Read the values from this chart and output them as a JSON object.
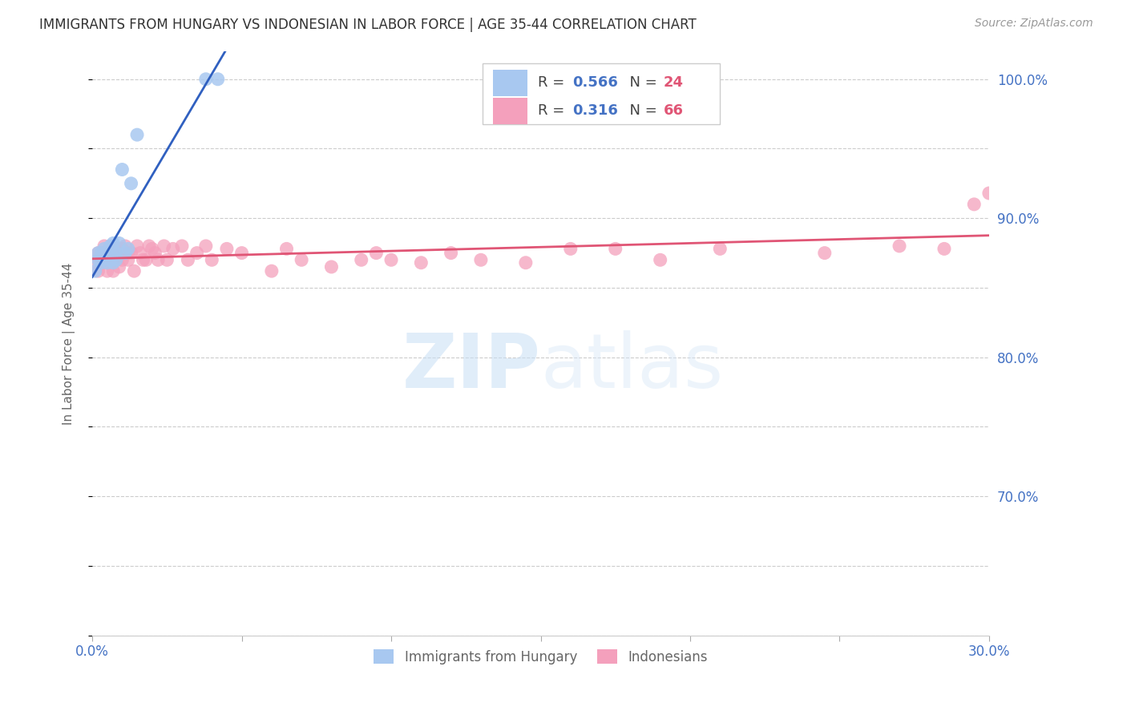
{
  "title": "IMMIGRANTS FROM HUNGARY VS INDONESIAN IN LABOR FORCE | AGE 35-44 CORRELATION CHART",
  "source": "Source: ZipAtlas.com",
  "ylabel": "In Labor Force | Age 35-44",
  "x_min": 0.0,
  "x_max": 0.3,
  "y_min": 0.6,
  "y_max": 1.02,
  "x_ticks": [
    0.0,
    0.05,
    0.1,
    0.15,
    0.2,
    0.25,
    0.3
  ],
  "y_ticks": [
    0.6,
    0.65,
    0.7,
    0.75,
    0.8,
    0.85,
    0.9,
    0.95,
    1.0
  ],
  "y_tick_labels_right": [
    "",
    "",
    "70.0%",
    "",
    "80.0%",
    "",
    "90.0%",
    "",
    "100.0%"
  ],
  "hungary_color": "#a8c8f0",
  "indonesian_color": "#f4a0bc",
  "hungary_line_color": "#3060c0",
  "indonesian_line_color": "#e05575",
  "hungary_x": [
    0.001,
    0.002,
    0.002,
    0.003,
    0.003,
    0.004,
    0.004,
    0.005,
    0.005,
    0.006,
    0.006,
    0.007,
    0.007,
    0.007,
    0.008,
    0.008,
    0.009,
    0.01,
    0.011,
    0.012,
    0.013,
    0.015,
    0.038,
    0.042
  ],
  "hungary_y": [
    0.862,
    0.87,
    0.875,
    0.868,
    0.875,
    0.872,
    0.878,
    0.868,
    0.875,
    0.87,
    0.88,
    0.868,
    0.875,
    0.882,
    0.87,
    0.875,
    0.882,
    0.935,
    0.875,
    0.878,
    0.925,
    0.96,
    1.0,
    1.0
  ],
  "indonesian_x": [
    0.001,
    0.002,
    0.002,
    0.003,
    0.003,
    0.004,
    0.004,
    0.004,
    0.005,
    0.005,
    0.005,
    0.006,
    0.006,
    0.007,
    0.007,
    0.007,
    0.008,
    0.008,
    0.009,
    0.009,
    0.01,
    0.01,
    0.011,
    0.011,
    0.012,
    0.012,
    0.013,
    0.014,
    0.015,
    0.016,
    0.017,
    0.018,
    0.019,
    0.02,
    0.021,
    0.022,
    0.024,
    0.025,
    0.027,
    0.03,
    0.032,
    0.035,
    0.038,
    0.04,
    0.045,
    0.05,
    0.06,
    0.065,
    0.07,
    0.08,
    0.09,
    0.095,
    0.1,
    0.11,
    0.12,
    0.13,
    0.145,
    0.16,
    0.175,
    0.19,
    0.21,
    0.245,
    0.27,
    0.285,
    0.295,
    0.3
  ],
  "indonesian_y": [
    0.868,
    0.875,
    0.862,
    0.875,
    0.868,
    0.875,
    0.87,
    0.88,
    0.868,
    0.875,
    0.862,
    0.875,
    0.87,
    0.875,
    0.87,
    0.862,
    0.878,
    0.87,
    0.875,
    0.865,
    0.878,
    0.87,
    0.875,
    0.88,
    0.87,
    0.875,
    0.875,
    0.862,
    0.88,
    0.875,
    0.87,
    0.87,
    0.88,
    0.878,
    0.875,
    0.87,
    0.88,
    0.87,
    0.878,
    0.88,
    0.87,
    0.875,
    0.88,
    0.87,
    0.878,
    0.875,
    0.862,
    0.878,
    0.87,
    0.865,
    0.87,
    0.875,
    0.87,
    0.868,
    0.875,
    0.87,
    0.868,
    0.878,
    0.878,
    0.87,
    0.878,
    0.875,
    0.88,
    0.878,
    0.91,
    0.918
  ],
  "watermark_zip": "ZIP",
  "watermark_atlas": "atlas",
  "background_color": "#ffffff",
  "grid_color": "#cccccc",
  "axis_color": "#4472c4",
  "legend_val_color": "#4472c4",
  "legend_n_color": "#e05575"
}
